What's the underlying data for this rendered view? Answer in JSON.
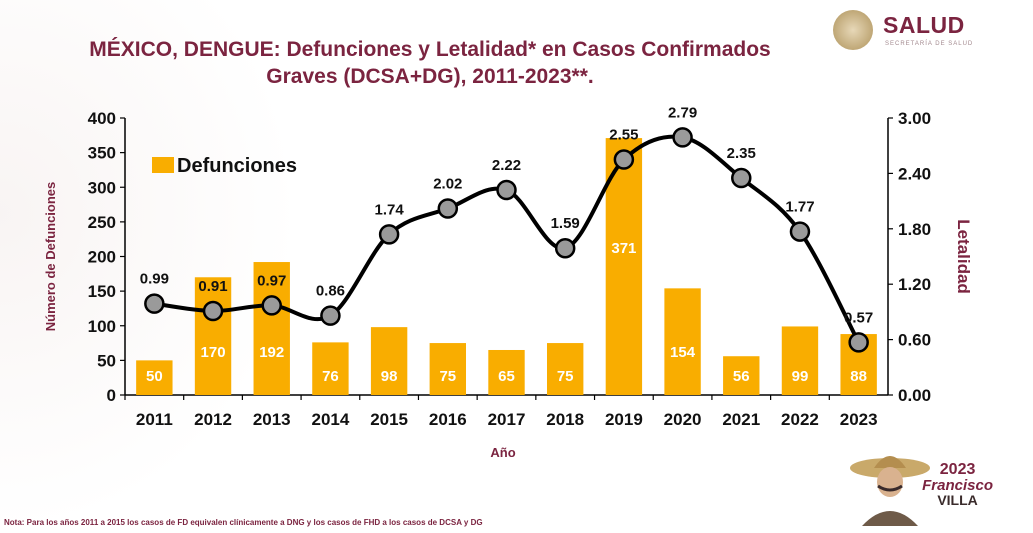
{
  "header": {
    "title_line1": "MÉXICO, DENGUE: Defunciones y Letalidad* en Casos Confirmados",
    "title_line2": "Graves (DCSA+DG), 2011-2023**."
  },
  "logo": {
    "text": "SALUD",
    "subtext": "SECRETARÍA DE SALUD"
  },
  "footer": {
    "note": "Nota: Para los años 2011 a 2015 los casos de FD equivalen clínicamente a DNG y los casos de FHD a los casos de DCSA y DG",
    "anniversary_year": "2023",
    "anniversary_name1": "Francisco",
    "anniversary_name2": "VILLA"
  },
  "colors": {
    "bar": "#f9ad00",
    "line": "#000000",
    "marker": "#9a9a9a",
    "title": "#7b2440",
    "axis_label": "#7b2440"
  },
  "chart_data": {
    "type": "bar",
    "categories": [
      "2011",
      "2012",
      "2013",
      "2014",
      "2015",
      "2016",
      "2017",
      "2018",
      "2019",
      "2020",
      "2021",
      "2022",
      "2023"
    ],
    "xlabel": "Año",
    "ylabel": "Número de Defunciones",
    "y2label": "Letalidad",
    "ylim": [
      0,
      400
    ],
    "y2lim": [
      0,
      3
    ],
    "yticks": [
      0,
      50,
      100,
      150,
      200,
      250,
      300,
      350,
      400
    ],
    "y2ticks": [
      "0.00",
      "0.60",
      "1.20",
      "1.80",
      "2.40",
      "3.00"
    ],
    "legend_position": "top-left",
    "series": [
      {
        "name": "Defunciones",
        "type": "bar",
        "axis": "left",
        "values": [
          50,
          170,
          192,
          76,
          98,
          75,
          65,
          75,
          371,
          154,
          56,
          99,
          88
        ]
      },
      {
        "type": "line",
        "axis": "right",
        "values": [
          0.99,
          0.91,
          0.97,
          0.86,
          1.74,
          2.02,
          2.22,
          1.59,
          2.55,
          2.79,
          2.35,
          1.77,
          0.57
        ]
      }
    ]
  }
}
